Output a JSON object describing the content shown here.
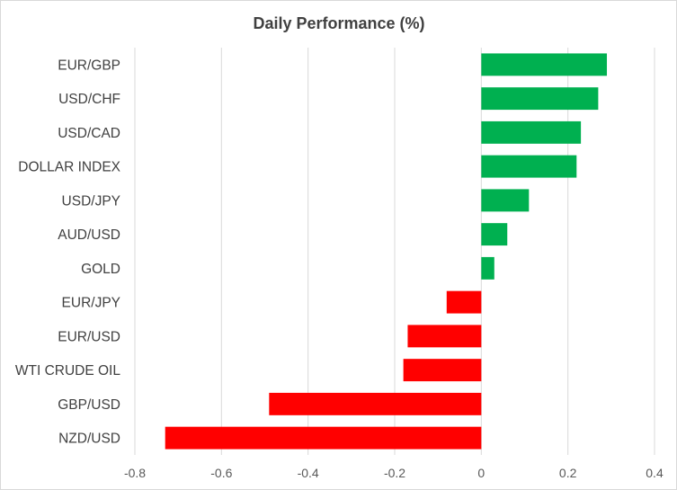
{
  "chart_data": {
    "type": "bar",
    "orientation": "horizontal",
    "title": "Daily Performance (%)",
    "categories": [
      "EUR/GBP",
      "USD/CHF",
      "USD/CAD",
      "DOLLAR INDEX",
      "USD/JPY",
      "AUD/USD",
      "GOLD",
      "EUR/JPY",
      "EUR/USD",
      "WTI CRUDE OIL",
      "GBP/USD",
      "NZD/USD"
    ],
    "values": [
      0.29,
      0.27,
      0.23,
      0.22,
      0.11,
      0.06,
      0.03,
      -0.08,
      -0.17,
      -0.18,
      -0.49,
      -0.73
    ],
    "xlim": [
      -0.8,
      0.4
    ],
    "x_ticks": [
      -0.8,
      -0.6,
      -0.4,
      -0.2,
      0,
      0.2,
      0.4
    ],
    "x_tick_labels": [
      "-0.8",
      "-0.6",
      "-0.4",
      "-0.2",
      "0",
      "0.2",
      "0.4"
    ],
    "xlabel": "",
    "ylabel": "",
    "grid": "vertical",
    "legend": "none",
    "colors": {
      "positive": "#00b050",
      "negative": "#ff0000",
      "grid": "#d9d9d9",
      "text": "#404040"
    }
  }
}
